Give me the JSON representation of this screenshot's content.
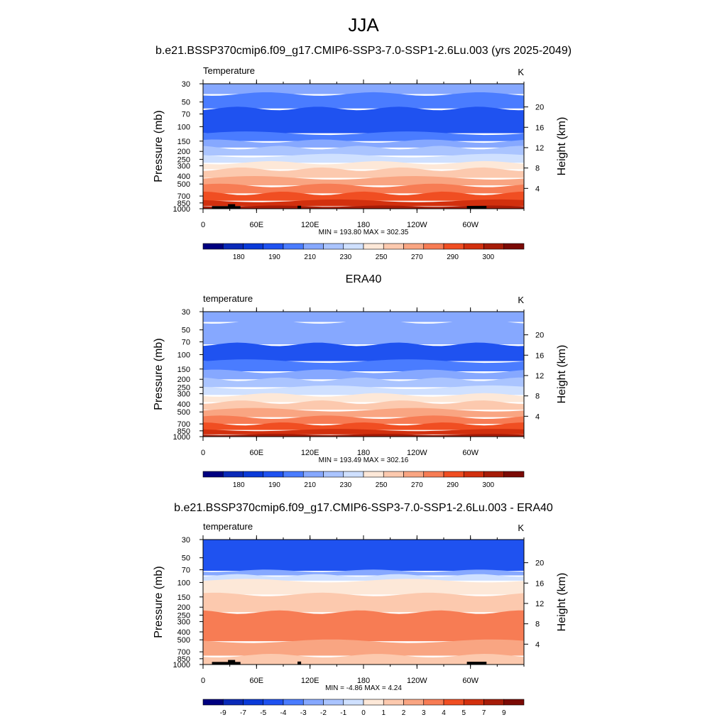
{
  "figure": {
    "title": "JJA",
    "colors": {
      "temperature_scale": [
        "#000080",
        "#0a2ab8",
        "#0a3ad8",
        "#1f52f0",
        "#4a7cff",
        "#86a8ff",
        "#aac4ff",
        "#cfe0ff",
        "#fde8d8",
        "#fcc9ae",
        "#f9a582",
        "#f77c54",
        "#f04e22",
        "#d2300e",
        "#a61c08",
        "#7b0a05"
      ],
      "difference_scale": [
        "#000080",
        "#0a2ab8",
        "#0a3ad8",
        "#1f52f0",
        "#4a7cff",
        "#86a8ff",
        "#aac4ff",
        "#cfe0ff",
        "#fde8d8",
        "#fcc9ae",
        "#f9a582",
        "#f77c54",
        "#f04e22",
        "#d2300e",
        "#a61c08",
        "#7b0a05"
      ]
    }
  },
  "chart_data": [
    {
      "type": "heatmap",
      "title": "b.e21.BSSP370cmip6.f09_g17.CMIP6-SSP3-7.0-SSP1-2.6Lu.003 (yrs 2025-2049)",
      "subtitle_left": "Temperature",
      "subtitle_right": "K",
      "xlabel": "",
      "ylabel": "Pressure (mb)",
      "ylabel_right": "Height (km)",
      "x_ticks": [
        "0",
        "60E",
        "120E",
        "180",
        "120W",
        "60W"
      ],
      "x_tick_lon": [
        0,
        60,
        120,
        180,
        240,
        300
      ],
      "xlim": [
        0,
        360
      ],
      "y_ticks": [
        30,
        50,
        70,
        100,
        150,
        200,
        250,
        300,
        400,
        500,
        700,
        850,
        1000
      ],
      "y_scale": "log",
      "ylim": [
        1000,
        30
      ],
      "height_ticks": [
        4,
        8,
        12,
        16,
        20
      ],
      "stats": "MIN = 193.80  MAX = 302.35",
      "colorbar_labels": [
        "180",
        "190",
        "210",
        "230",
        "250",
        "270",
        "290",
        "300"
      ],
      "bands": [
        {
          "p_top": 30,
          "p_bot": 40,
          "color_index": 5
        },
        {
          "p_top": 40,
          "p_bot": 60,
          "color_index": 4
        },
        {
          "p_top": 60,
          "p_bot": 120,
          "color_index": 3
        },
        {
          "p_top": 120,
          "p_bot": 150,
          "color_index": 4
        },
        {
          "p_top": 150,
          "p_bot": 180,
          "color_index": 5
        },
        {
          "p_top": 180,
          "p_bot": 225,
          "color_index": 6
        },
        {
          "p_top": 225,
          "p_bot": 275,
          "color_index": 7
        },
        {
          "p_top": 275,
          "p_bot": 330,
          "color_index": 8
        },
        {
          "p_top": 330,
          "p_bot": 420,
          "color_index": 9
        },
        {
          "p_top": 420,
          "p_bot": 520,
          "color_index": 10
        },
        {
          "p_top": 520,
          "p_bot": 650,
          "color_index": 11
        },
        {
          "p_top": 650,
          "p_bot": 800,
          "color_index": 12
        },
        {
          "p_top": 800,
          "p_bot": 930,
          "color_index": 13
        },
        {
          "p_top": 930,
          "p_bot": 1000,
          "color_index": 14
        }
      ],
      "terrain": true
    },
    {
      "type": "heatmap",
      "title": "ERA40",
      "subtitle_left": "temperature",
      "subtitle_right": "K",
      "xlabel": "",
      "ylabel": "Pressure (mb)",
      "ylabel_right": "Height (km)",
      "x_ticks": [
        "0",
        "60E",
        "120E",
        "180",
        "120W",
        "60W"
      ],
      "x_tick_lon": [
        0,
        60,
        120,
        180,
        240,
        300
      ],
      "xlim": [
        0,
        360
      ],
      "y_ticks": [
        30,
        50,
        70,
        100,
        150,
        200,
        250,
        300,
        400,
        500,
        700,
        850,
        1000
      ],
      "y_scale": "log",
      "ylim": [
        1000,
        30
      ],
      "height_ticks": [
        4,
        8,
        12,
        16,
        20
      ],
      "stats": "MIN = 193.49  MAX = 302.16",
      "colorbar_labels": [
        "180",
        "190",
        "210",
        "230",
        "250",
        "270",
        "290",
        "300"
      ],
      "bands": [
        {
          "p_top": 30,
          "p_bot": 40,
          "color_index": 5
        },
        {
          "p_top": 40,
          "p_bot": 75,
          "color_index": 5
        },
        {
          "p_top": 75,
          "p_bot": 120,
          "color_index": 3
        },
        {
          "p_top": 120,
          "p_bot": 160,
          "color_index": 4
        },
        {
          "p_top": 160,
          "p_bot": 200,
          "color_index": 5
        },
        {
          "p_top": 200,
          "p_bot": 250,
          "color_index": 6
        },
        {
          "p_top": 250,
          "p_bot": 310,
          "color_index": 7
        },
        {
          "p_top": 310,
          "p_bot": 380,
          "color_index": 8
        },
        {
          "p_top": 380,
          "p_bot": 470,
          "color_index": 9
        },
        {
          "p_top": 470,
          "p_bot": 580,
          "color_index": 10
        },
        {
          "p_top": 580,
          "p_bot": 700,
          "color_index": 11
        },
        {
          "p_top": 700,
          "p_bot": 830,
          "color_index": 12
        },
        {
          "p_top": 830,
          "p_bot": 940,
          "color_index": 13
        },
        {
          "p_top": 940,
          "p_bot": 1000,
          "color_index": 14
        }
      ],
      "terrain": false
    },
    {
      "type": "heatmap",
      "title": "b.e21.BSSP370cmip6.f09_g17.CMIP6-SSP3-7.0-SSP1-2.6Lu.003 - ERA40",
      "subtitle_left": "temperature",
      "subtitle_right": "K",
      "xlabel": "",
      "ylabel": "Pressure (mb)",
      "ylabel_right": "Height (km)",
      "x_ticks": [
        "0",
        "60E",
        "120E",
        "180",
        "120W",
        "60W"
      ],
      "x_tick_lon": [
        0,
        60,
        120,
        180,
        240,
        300
      ],
      "xlim": [
        0,
        360
      ],
      "y_ticks": [
        30,
        50,
        70,
        100,
        150,
        200,
        250,
        300,
        400,
        500,
        700,
        850,
        1000
      ],
      "y_scale": "log",
      "ylim": [
        1000,
        30
      ],
      "height_ticks": [
        4,
        8,
        12,
        16,
        20
      ],
      "stats": "MIN =  -4.86  MAX =   4.24",
      "colorbar_labels": [
        "-9",
        "-7",
        "-5",
        "-4",
        "-3",
        "-2",
        "-1",
        "0",
        "1",
        "2",
        "3",
        "4",
        "5",
        "7",
        "9"
      ],
      "bands": [
        {
          "p_top": 30,
          "p_bot": 72,
          "color_index": 3
        },
        {
          "p_top": 72,
          "p_bot": 82,
          "color_index": 5
        },
        {
          "p_top": 82,
          "p_bot": 95,
          "color_index": 7
        },
        {
          "p_top": 95,
          "p_bot": 140,
          "color_index": 8
        },
        {
          "p_top": 140,
          "p_bot": 230,
          "color_index": 9
        },
        {
          "p_top": 230,
          "p_bot": 520,
          "color_index": 11
        },
        {
          "p_top": 520,
          "p_bot": 780,
          "color_index": 10
        },
        {
          "p_top": 780,
          "p_bot": 1000,
          "color_index": 9
        }
      ],
      "terrain": true
    }
  ]
}
